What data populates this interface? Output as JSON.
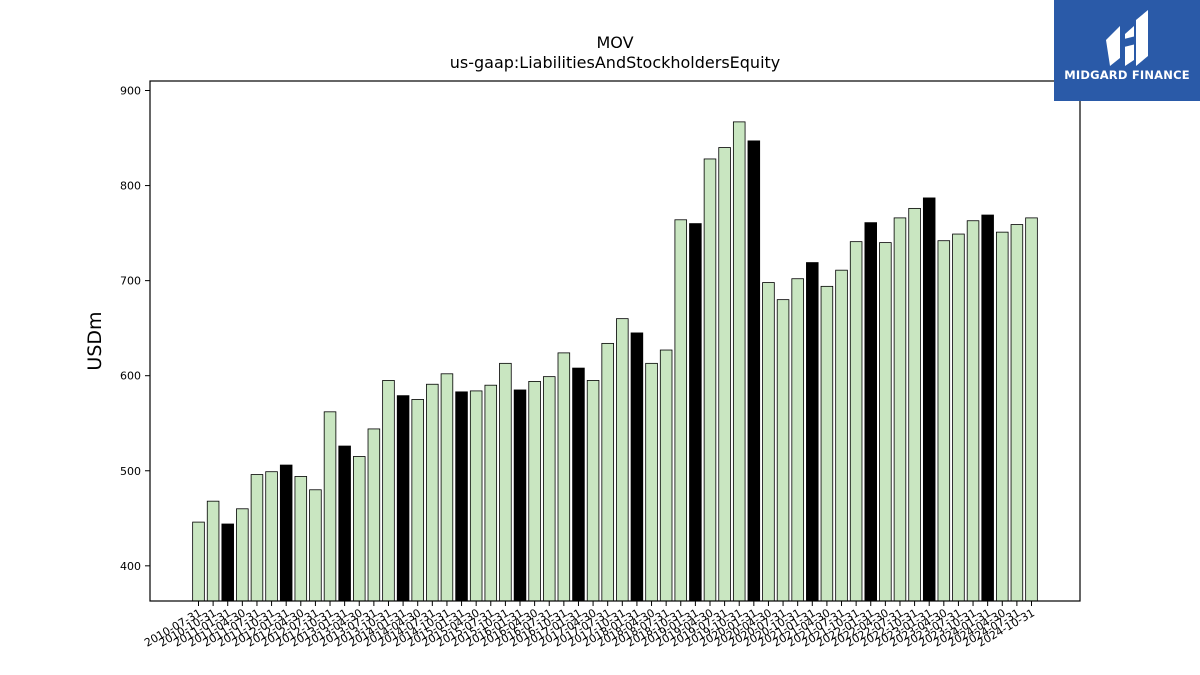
{
  "brand": {
    "name": "MIDGARD FINANCE",
    "bg_color": "#2a5aa8"
  },
  "chart_data": {
    "type": "bar",
    "title": "MOV",
    "subtitle": "us-gaap:LiabilitiesAndStockholdersEquity",
    "xlabel": "",
    "ylabel": "USDm",
    "ylim": [
      363,
      910
    ],
    "yticks": [
      400,
      500,
      600,
      700,
      800,
      900
    ],
    "grid": false,
    "colors": {
      "default": "#c9e6c1",
      "highlight": "#000000",
      "edge": "#000000"
    },
    "categories": [
      "2010-07-31",
      "2010-10-31",
      "2011-01-31",
      "2011-04-30",
      "2011-07-31",
      "2011-10-31",
      "2012-01-31",
      "2012-04-30",
      "2012-07-31",
      "2012-10-31",
      "2013-01-31",
      "2013-04-30",
      "2013-07-31",
      "2013-10-31",
      "2014-01-31",
      "2014-04-30",
      "2014-07-31",
      "2014-10-31",
      "2015-01-31",
      "2015-04-30",
      "2015-07-31",
      "2015-10-31",
      "2016-01-31",
      "2016-04-30",
      "2016-07-31",
      "2016-10-31",
      "2017-01-31",
      "2017-04-30",
      "2017-07-31",
      "2017-10-31",
      "2018-01-31",
      "2018-04-30",
      "2018-07-31",
      "2018-10-31",
      "2019-01-31",
      "2019-04-30",
      "2019-07-31",
      "2019-10-31",
      "2020-01-31",
      "2020-04-30",
      "2020-07-31",
      "2020-10-31",
      "2021-01-31",
      "2021-04-30",
      "2021-07-31",
      "2021-10-31",
      "2022-01-31",
      "2022-04-30",
      "2022-07-31",
      "2022-10-31",
      "2023-01-31",
      "2023-04-30",
      "2023-07-31",
      "2023-10-31",
      "2024-01-31",
      "2024-04-30",
      "2024-07-31",
      "2024-10-31"
    ],
    "values": [
      446,
      468,
      444,
      460,
      496,
      499,
      506,
      494,
      480,
      562,
      526,
      515,
      544,
      595,
      579,
      575,
      591,
      602,
      583,
      584,
      590,
      613,
      585,
      594,
      599,
      624,
      608,
      595,
      634,
      660,
      645,
      613,
      627,
      764,
      760,
      828,
      840,
      867,
      847,
      698,
      680,
      702,
      719,
      694,
      711,
      741,
      761,
      740,
      766,
      776,
      787,
      742,
      749,
      763,
      769,
      751,
      759,
      766
    ],
    "highlight": [
      false,
      false,
      true,
      false,
      false,
      false,
      true,
      false,
      false,
      false,
      true,
      false,
      false,
      false,
      true,
      false,
      false,
      false,
      true,
      false,
      false,
      false,
      true,
      false,
      false,
      false,
      true,
      false,
      false,
      false,
      true,
      false,
      false,
      false,
      true,
      false,
      false,
      false,
      true,
      false,
      false,
      false,
      true,
      false,
      false,
      false,
      true,
      false,
      false,
      false,
      true,
      false,
      false,
      false,
      true,
      false,
      false,
      false
    ]
  }
}
